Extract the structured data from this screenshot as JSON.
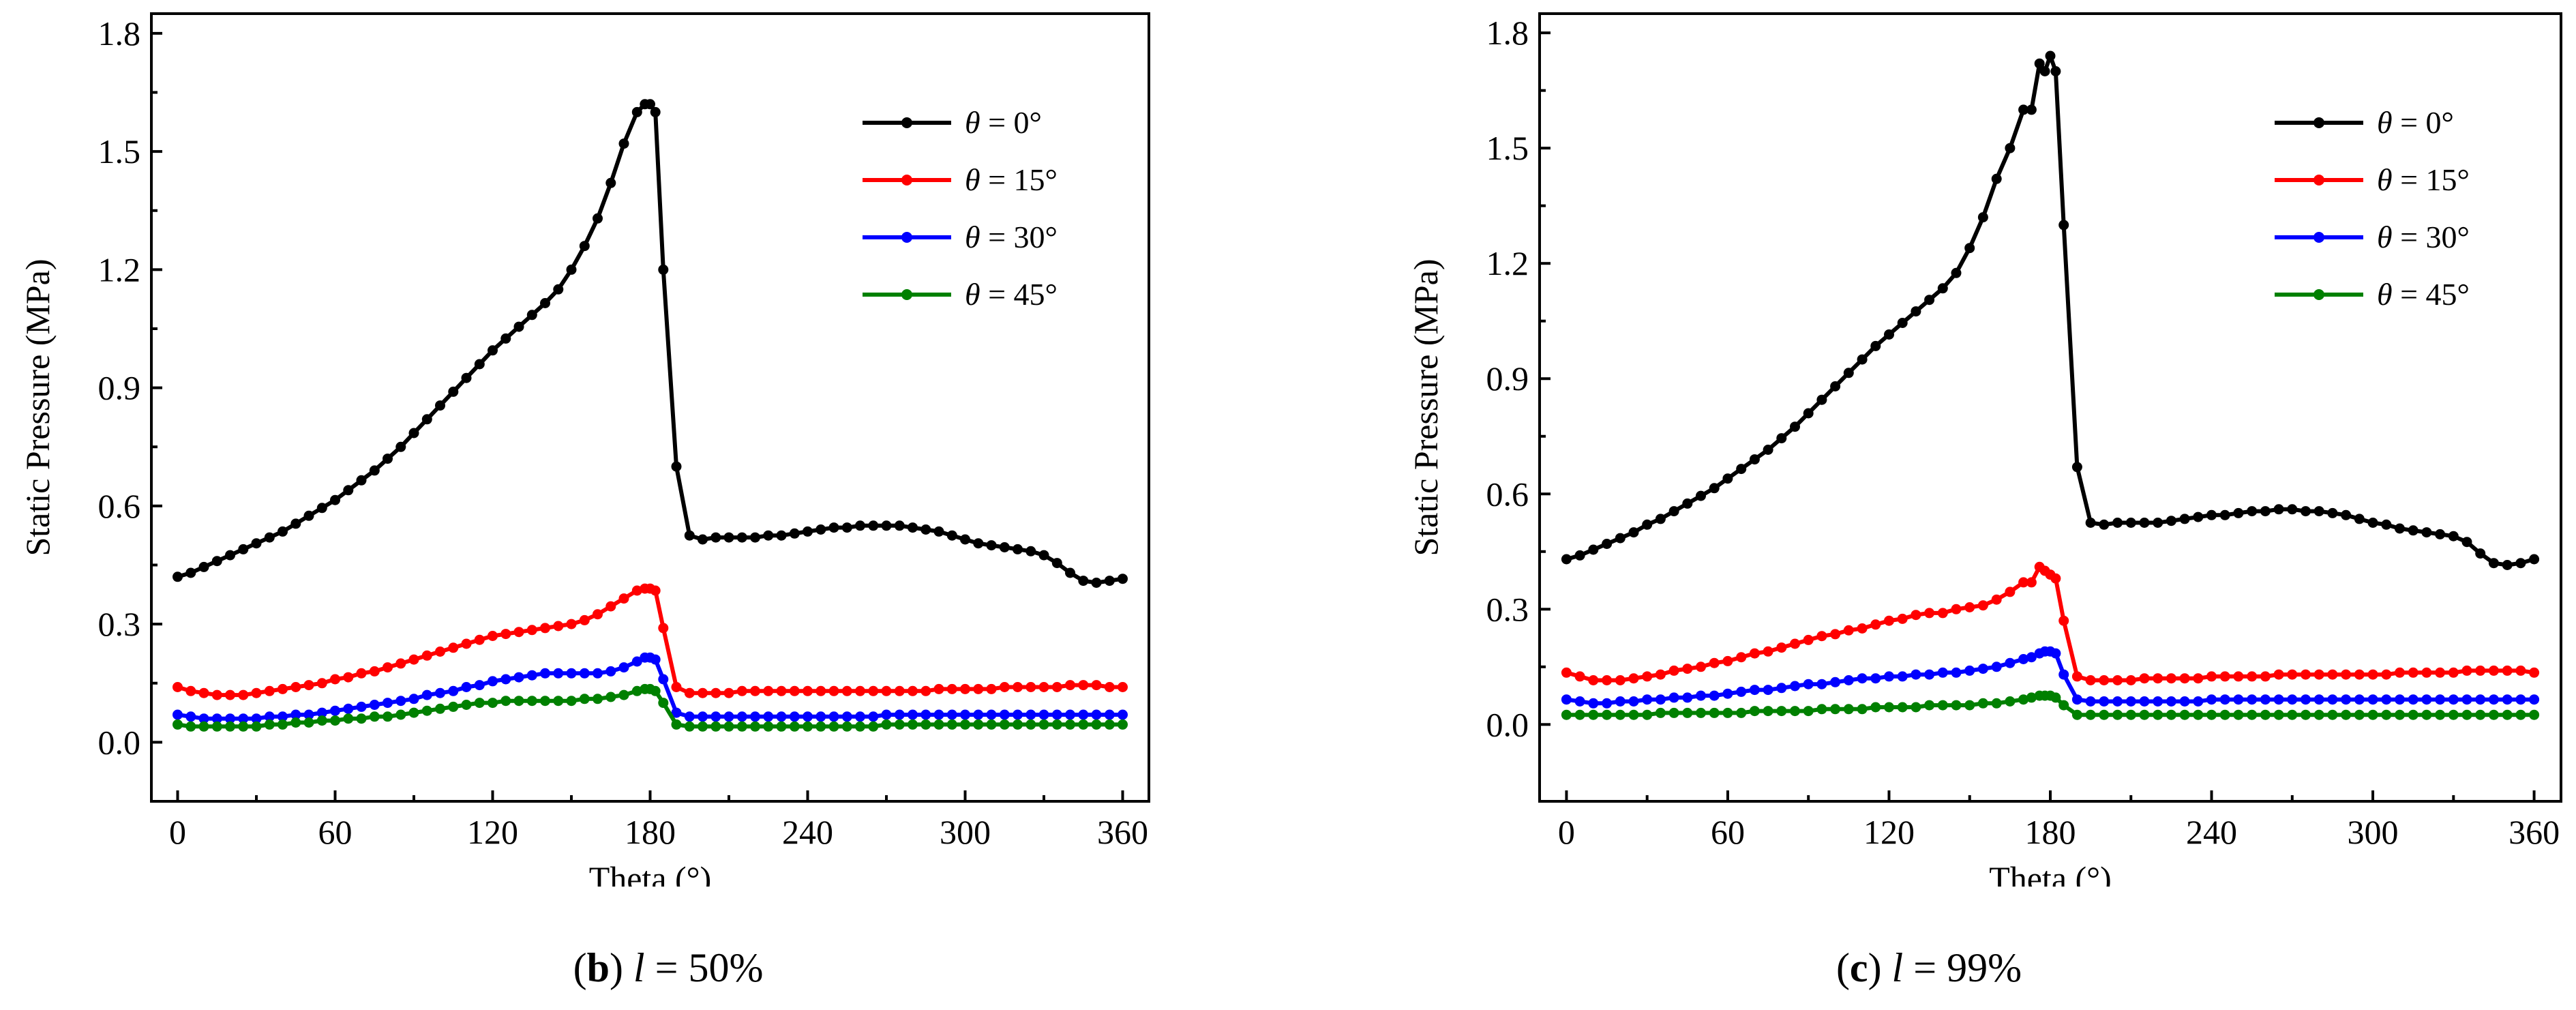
{
  "chart_data": [
    {
      "type": "line",
      "caption": {
        "letter": "b",
        "var": "l",
        "eq": " = ",
        "value": "50%"
      },
      "xlabel": "Theta (°)",
      "ylabel": "Static Pressure (MPa)",
      "xlim": [
        -10,
        370
      ],
      "ylim": [
        -0.15,
        1.85
      ],
      "xticks": [
        0,
        60,
        120,
        180,
        240,
        300,
        360
      ],
      "yticks": [
        0.0,
        0.3,
        0.6,
        0.9,
        1.2,
        1.5,
        1.8
      ],
      "ytick_labels": [
        "0.0",
        "0.3",
        "0.6",
        "0.9",
        "1.2",
        "1.5",
        "1.8"
      ],
      "legend_position": "top-right",
      "x": [
        0,
        5,
        10,
        15,
        20,
        25,
        30,
        35,
        40,
        45,
        50,
        55,
        60,
        65,
        70,
        75,
        80,
        85,
        90,
        95,
        100,
        105,
        110,
        115,
        120,
        125,
        130,
        135,
        140,
        145,
        150,
        155,
        160,
        165,
        170,
        175,
        178,
        180,
        182,
        185,
        190,
        195,
        200,
        205,
        210,
        215,
        220,
        225,
        230,
        235,
        240,
        245,
        250,
        255,
        260,
        265,
        270,
        275,
        280,
        285,
        290,
        295,
        300,
        305,
        310,
        315,
        320,
        325,
        330,
        335,
        340,
        345,
        350,
        355,
        360
      ],
      "series": [
        {
          "name": "θ = 0°",
          "sym": "θ",
          "eq": " = 0°",
          "color": "#000000",
          "values": [
            0.42,
            0.43,
            0.445,
            0.46,
            0.475,
            0.49,
            0.505,
            0.52,
            0.535,
            0.555,
            0.575,
            0.595,
            0.615,
            0.64,
            0.665,
            0.69,
            0.72,
            0.75,
            0.785,
            0.82,
            0.855,
            0.89,
            0.925,
            0.96,
            0.995,
            1.025,
            1.055,
            1.085,
            1.115,
            1.15,
            1.2,
            1.26,
            1.33,
            1.42,
            1.52,
            1.6,
            1.62,
            1.62,
            1.6,
            1.2,
            0.7,
            0.525,
            0.515,
            0.52,
            0.52,
            0.52,
            0.52,
            0.525,
            0.525,
            0.53,
            0.535,
            0.54,
            0.545,
            0.545,
            0.55,
            0.55,
            0.55,
            0.55,
            0.545,
            0.54,
            0.535,
            0.525,
            0.515,
            0.505,
            0.5,
            0.495,
            0.49,
            0.485,
            0.475,
            0.455,
            0.43,
            0.41,
            0.405,
            0.41,
            0.415
          ]
        },
        {
          "name": "θ = 15°",
          "sym": "θ",
          "eq": " = 15°",
          "color": "#ff0000",
          "values": [
            0.14,
            0.13,
            0.125,
            0.12,
            0.12,
            0.12,
            0.125,
            0.13,
            0.135,
            0.14,
            0.145,
            0.15,
            0.16,
            0.165,
            0.175,
            0.18,
            0.19,
            0.2,
            0.21,
            0.22,
            0.23,
            0.24,
            0.25,
            0.26,
            0.27,
            0.275,
            0.28,
            0.285,
            0.29,
            0.295,
            0.3,
            0.31,
            0.325,
            0.345,
            0.365,
            0.385,
            0.39,
            0.39,
            0.385,
            0.29,
            0.14,
            0.125,
            0.125,
            0.125,
            0.125,
            0.13,
            0.13,
            0.13,
            0.13,
            0.13,
            0.13,
            0.13,
            0.13,
            0.13,
            0.13,
            0.13,
            0.13,
            0.13,
            0.13,
            0.13,
            0.135,
            0.135,
            0.135,
            0.135,
            0.135,
            0.14,
            0.14,
            0.14,
            0.14,
            0.14,
            0.145,
            0.145,
            0.145,
            0.14,
            0.14
          ]
        },
        {
          "name": "θ = 30°",
          "sym": "θ",
          "eq": " = 30°",
          "color": "#0000ff",
          "values": [
            0.07,
            0.065,
            0.06,
            0.06,
            0.06,
            0.06,
            0.06,
            0.065,
            0.065,
            0.07,
            0.07,
            0.075,
            0.08,
            0.085,
            0.09,
            0.095,
            0.1,
            0.105,
            0.11,
            0.12,
            0.125,
            0.13,
            0.14,
            0.145,
            0.155,
            0.16,
            0.165,
            0.17,
            0.175,
            0.175,
            0.175,
            0.175,
            0.175,
            0.18,
            0.19,
            0.205,
            0.215,
            0.215,
            0.21,
            0.16,
            0.075,
            0.065,
            0.065,
            0.065,
            0.065,
            0.065,
            0.065,
            0.065,
            0.065,
            0.065,
            0.065,
            0.065,
            0.065,
            0.065,
            0.065,
            0.065,
            0.07,
            0.07,
            0.07,
            0.07,
            0.07,
            0.07,
            0.07,
            0.07,
            0.07,
            0.07,
            0.07,
            0.07,
            0.07,
            0.07,
            0.07,
            0.07,
            0.07,
            0.07,
            0.07
          ]
        },
        {
          "name": "θ = 45°",
          "sym": "θ",
          "eq": " = 45°",
          "color": "#008000",
          "values": [
            0.045,
            0.04,
            0.04,
            0.04,
            0.04,
            0.04,
            0.04,
            0.045,
            0.045,
            0.05,
            0.05,
            0.055,
            0.055,
            0.06,
            0.06,
            0.065,
            0.065,
            0.07,
            0.075,
            0.08,
            0.085,
            0.09,
            0.095,
            0.1,
            0.1,
            0.105,
            0.105,
            0.105,
            0.105,
            0.105,
            0.105,
            0.11,
            0.11,
            0.115,
            0.12,
            0.13,
            0.135,
            0.135,
            0.13,
            0.1,
            0.045,
            0.04,
            0.04,
            0.04,
            0.04,
            0.04,
            0.04,
            0.04,
            0.04,
            0.04,
            0.04,
            0.04,
            0.04,
            0.04,
            0.04,
            0.04,
            0.045,
            0.045,
            0.045,
            0.045,
            0.045,
            0.045,
            0.045,
            0.045,
            0.045,
            0.045,
            0.045,
            0.045,
            0.045,
            0.045,
            0.045,
            0.045,
            0.045,
            0.045,
            0.045
          ]
        }
      ]
    },
    {
      "type": "line",
      "caption": {
        "letter": "c",
        "var": "l",
        "eq": " = ",
        "value": "99%"
      },
      "xlabel": "Theta (°)",
      "ylabel": "Static Pressure (MPa)",
      "xlim": [
        -10,
        370
      ],
      "ylim": [
        -0.2,
        1.85
      ],
      "xticks": [
        0,
        60,
        120,
        180,
        240,
        300,
        360
      ],
      "yticks": [
        0.0,
        0.3,
        0.6,
        0.9,
        1.2,
        1.5,
        1.8
      ],
      "ytick_labels": [
        "0.0",
        "0.3",
        "0.6",
        "0.9",
        "1.2",
        "1.5",
        "1.8"
      ],
      "legend_position": "top-right",
      "x": [
        0,
        5,
        10,
        15,
        20,
        25,
        30,
        35,
        40,
        45,
        50,
        55,
        60,
        65,
        70,
        75,
        80,
        85,
        90,
        95,
        100,
        105,
        110,
        115,
        120,
        125,
        130,
        135,
        140,
        145,
        150,
        155,
        160,
        165,
        170,
        173,
        176,
        178,
        180,
        182,
        185,
        190,
        195,
        200,
        205,
        210,
        215,
        220,
        225,
        230,
        235,
        240,
        245,
        250,
        255,
        260,
        265,
        270,
        275,
        280,
        285,
        290,
        295,
        300,
        305,
        310,
        315,
        320,
        325,
        330,
        335,
        340,
        345,
        350,
        355,
        360
      ],
      "series": [
        {
          "name": "θ = 0°",
          "sym": "θ",
          "eq": " = 0°",
          "color": "#000000",
          "values": [
            0.43,
            0.44,
            0.455,
            0.47,
            0.485,
            0.5,
            0.52,
            0.535,
            0.555,
            0.575,
            0.595,
            0.615,
            0.64,
            0.665,
            0.69,
            0.715,
            0.745,
            0.775,
            0.81,
            0.845,
            0.88,
            0.915,
            0.95,
            0.985,
            1.015,
            1.045,
            1.075,
            1.105,
            1.135,
            1.175,
            1.24,
            1.32,
            1.42,
            1.5,
            1.6,
            1.6,
            1.72,
            1.7,
            1.74,
            1.7,
            1.3,
            0.67,
            0.525,
            0.52,
            0.525,
            0.525,
            0.525,
            0.525,
            0.53,
            0.535,
            0.54,
            0.545,
            0.545,
            0.55,
            0.555,
            0.555,
            0.56,
            0.56,
            0.555,
            0.555,
            0.55,
            0.545,
            0.535,
            0.525,
            0.52,
            0.51,
            0.505,
            0.5,
            0.495,
            0.49,
            0.475,
            0.445,
            0.42,
            0.415,
            0.42,
            0.43
          ]
        },
        {
          "name": "θ = 15°",
          "sym": "θ",
          "eq": " = 15°",
          "color": "#ff0000",
          "values": [
            0.135,
            0.125,
            0.115,
            0.115,
            0.115,
            0.12,
            0.125,
            0.13,
            0.14,
            0.145,
            0.15,
            0.16,
            0.165,
            0.175,
            0.185,
            0.19,
            0.2,
            0.21,
            0.22,
            0.23,
            0.235,
            0.245,
            0.25,
            0.26,
            0.27,
            0.275,
            0.285,
            0.29,
            0.29,
            0.3,
            0.305,
            0.31,
            0.325,
            0.345,
            0.37,
            0.37,
            0.41,
            0.4,
            0.39,
            0.38,
            0.27,
            0.125,
            0.115,
            0.115,
            0.115,
            0.115,
            0.12,
            0.12,
            0.12,
            0.12,
            0.12,
            0.125,
            0.125,
            0.125,
            0.125,
            0.125,
            0.13,
            0.13,
            0.13,
            0.13,
            0.13,
            0.13,
            0.13,
            0.13,
            0.13,
            0.135,
            0.135,
            0.135,
            0.135,
            0.135,
            0.14,
            0.14,
            0.14,
            0.14,
            0.14,
            0.135
          ]
        },
        {
          "name": "θ = 30°",
          "sym": "θ",
          "eq": " = 30°",
          "color": "#0000ff",
          "values": [
            0.065,
            0.06,
            0.055,
            0.055,
            0.06,
            0.06,
            0.065,
            0.065,
            0.07,
            0.07,
            0.075,
            0.075,
            0.08,
            0.085,
            0.09,
            0.09,
            0.095,
            0.1,
            0.105,
            0.105,
            0.11,
            0.115,
            0.12,
            0.12,
            0.125,
            0.125,
            0.13,
            0.13,
            0.135,
            0.135,
            0.14,
            0.145,
            0.15,
            0.16,
            0.17,
            0.175,
            0.185,
            0.19,
            0.19,
            0.185,
            0.13,
            0.065,
            0.06,
            0.06,
            0.06,
            0.06,
            0.06,
            0.06,
            0.06,
            0.06,
            0.06,
            0.065,
            0.065,
            0.065,
            0.065,
            0.065,
            0.065,
            0.065,
            0.065,
            0.065,
            0.065,
            0.065,
            0.065,
            0.065,
            0.065,
            0.065,
            0.065,
            0.065,
            0.065,
            0.065,
            0.065,
            0.065,
            0.065,
            0.065,
            0.065,
            0.065
          ]
        },
        {
          "name": "θ = 45°",
          "sym": "θ",
          "eq": " = 45°",
          "color": "#008000",
          "values": [
            0.025,
            0.025,
            0.025,
            0.025,
            0.025,
            0.025,
            0.025,
            0.03,
            0.03,
            0.03,
            0.03,
            0.03,
            0.03,
            0.03,
            0.035,
            0.035,
            0.035,
            0.035,
            0.035,
            0.04,
            0.04,
            0.04,
            0.04,
            0.045,
            0.045,
            0.045,
            0.045,
            0.05,
            0.05,
            0.05,
            0.05,
            0.055,
            0.055,
            0.06,
            0.065,
            0.07,
            0.075,
            0.075,
            0.075,
            0.07,
            0.05,
            0.025,
            0.025,
            0.025,
            0.025,
            0.025,
            0.025,
            0.025,
            0.025,
            0.025,
            0.025,
            0.025,
            0.025,
            0.025,
            0.025,
            0.025,
            0.025,
            0.025,
            0.025,
            0.025,
            0.025,
            0.025,
            0.025,
            0.025,
            0.025,
            0.025,
            0.025,
            0.025,
            0.025,
            0.025,
            0.025,
            0.025,
            0.025,
            0.025,
            0.025,
            0.025
          ]
        }
      ]
    }
  ]
}
